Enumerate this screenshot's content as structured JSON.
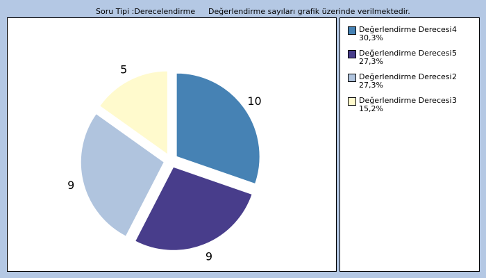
{
  "header": {
    "question_type": "Soru Tipi :Derecelendirme",
    "note": "Değerlendirme sayıları grafik üzerinde verilmektedir."
  },
  "chart_data": {
    "type": "pie",
    "title": "",
    "slices": [
      {
        "label": "Değerlendirme Derecesi",
        "code": "4",
        "value": 10,
        "percent": "30,3%",
        "color": "#4682b4"
      },
      {
        "label": "Değerlendirme Derecesi",
        "code": "5",
        "value": 9,
        "percent": "27,3%",
        "color": "#483d8b"
      },
      {
        "label": "Değerlendirme Derecesi",
        "code": "2",
        "value": 9,
        "percent": "27,3%",
        "color": "#b0c4de"
      },
      {
        "label": "Değerlendirme Derecesi",
        "code": "3",
        "value": 5,
        "percent": "15,2%",
        "color": "#fffacd"
      }
    ],
    "exploded": true,
    "legend_position": "right"
  },
  "colors": {
    "background": "#b4c8e4",
    "panel": "#ffffff",
    "slice_stroke": "#ffffff"
  }
}
